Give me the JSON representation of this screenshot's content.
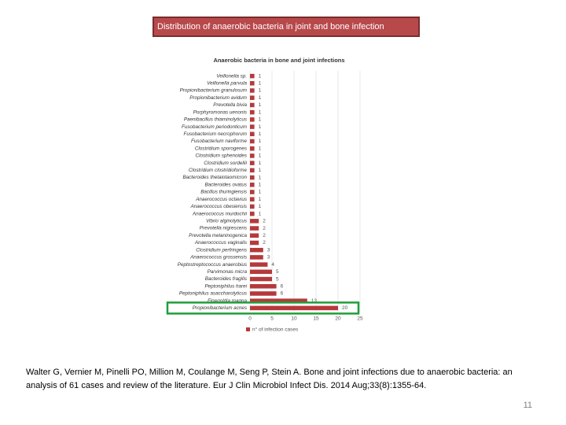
{
  "header": {
    "title": "Distribution of anaerobic bacteria in joint and bone infection"
  },
  "chart_data": {
    "type": "barh",
    "title": "Anaerobic bacteria in bone and joint infections",
    "categories": [
      "Veillonella sp.",
      "Veillonella parvula",
      "Propionibacterium granulosum",
      "Propionibacterium avidum",
      "Prevotella bivia",
      "Porphyromonas uenonis",
      "Paenibacillus thiaminolyticus",
      "Fusobacterium periodonticum",
      "Fusobacterium necrophorum",
      "Fusobacterium naviforme",
      "Clostridium sporogenes",
      "Clostridium sphenoides",
      "Clostridium sordellii",
      "Clostridium clostridioforme",
      "Bacteroides thetaiotaomicron",
      "Bacteroides ovatus",
      "Bacillus thuringiensis",
      "Anaerococcus octavius",
      "Anaerococcus obesiensis",
      "Anaerococcus murdochii",
      "Vibrio alginolyticus",
      "Prevotella nigrescens",
      "Prevotella melaninogenica",
      "Anaerococcus vaginalis",
      "Clostridium perfringens",
      "Anaerococcus grossensis",
      "Peptostreptococcus anaerobius",
      "Parvimonas micra",
      "Bacteroides fragilis",
      "Peptoniphilus harei",
      "Peptoniphilus asaccharolyticus",
      "Finegoldia magna",
      "Propionibacterium acnes"
    ],
    "values": [
      1,
      1,
      1,
      1,
      1,
      1,
      1,
      1,
      1,
      1,
      1,
      1,
      1,
      1,
      1,
      1,
      1,
      1,
      1,
      1,
      2,
      2,
      2,
      2,
      3,
      3,
      4,
      5,
      5,
      6,
      6,
      13,
      20
    ],
    "color": "#b5393b",
    "xlim": [
      0,
      25
    ],
    "xticks": [
      0,
      5,
      10,
      15,
      20,
      25
    ],
    "grid": true,
    "legend": "n° of infection cases"
  },
  "citation": [
    "Walter G, Vernier M, Pinelli PO, Million M, Coulange M, Seng P, Stein A. Bone and joint infections due to anaerobic bacteria: an",
    "analysis of 61 cases and review of the literature. Eur J Clin Microbiol Infect Dis. 2014 Aug;33(8):1355-64."
  ],
  "page_number": "11"
}
